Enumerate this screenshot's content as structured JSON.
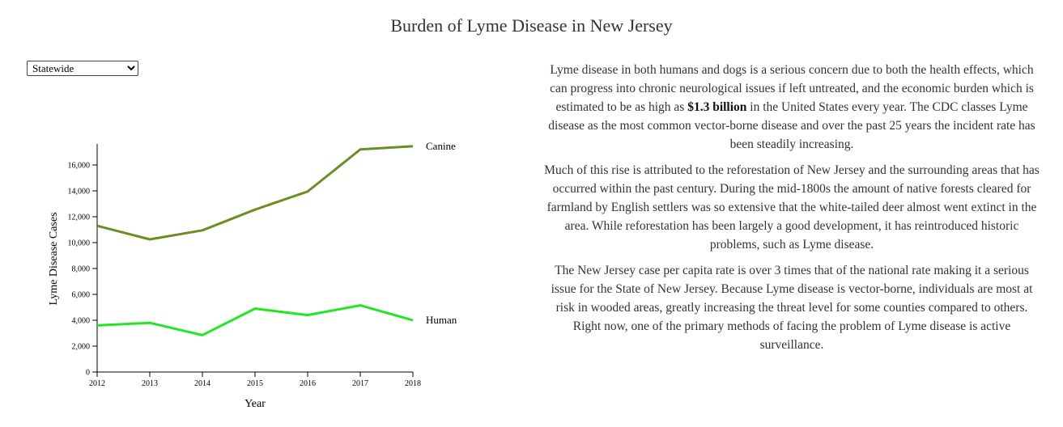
{
  "header": {
    "title": "Burden of Lyme Disease in New Jersey"
  },
  "region_select": {
    "selected": "Statewide",
    "options": [
      "Statewide"
    ]
  },
  "chart_data": {
    "type": "line",
    "title": "",
    "xlabel": "Year",
    "ylabel": "Lyme Disease Cases",
    "x": [
      2012,
      2013,
      2014,
      2015,
      2016,
      2017,
      2018
    ],
    "xlim": [
      2012,
      2018
    ],
    "ylim": [
      0,
      17500
    ],
    "y_ticks": [
      0,
      2000,
      4000,
      6000,
      8000,
      10000,
      12000,
      14000,
      16000
    ],
    "y_tick_labels": [
      "0",
      "2,000",
      "4,000",
      "6,000",
      "8,000",
      "10,000",
      "12,000",
      "14,000",
      "16,000"
    ],
    "grid": false,
    "legend": "inline labels at line ends",
    "series": [
      {
        "name": "Canine",
        "color": "#6b8e23",
        "values": [
          11300,
          10250,
          10950,
          12550,
          13950,
          17200,
          17450
        ]
      },
      {
        "name": "Human",
        "color": "#22e622",
        "values": [
          3600,
          3800,
          2850,
          4900,
          4400,
          5150,
          4000
        ]
      }
    ]
  },
  "article": {
    "p1_before": "Lyme disease in both humans and dogs is a serious concern due to both the health effects, which can progress into chronic neurological issues if left untreated, and the economic burden which is estimated to be as high as ",
    "p1_bold": "$1.3 billion",
    "p1_after": " in the United States every year. The CDC classes Lyme disease as the most common vector-borne disease and over the past 25 years the incident rate has been steadily increasing.",
    "p2": "Much of this rise is attributed to the reforestation of New Jersey and the surrounding areas that has occurred within the past century. During the mid-1800s the amount of native forests cleared for farmland by English settlers was so extensive that the white-tailed deer almost went extinct in the area. While reforestation has been largely a good development, it has reintroduced historic problems, such as Lyme disease.",
    "p3": "The New Jersey case per capita rate is over 3 times that of the national rate making it a serious issue for the State of New Jersey. Because Lyme disease is vector-borne, individuals are most at risk in wooded areas, greatly increasing the threat level for some counties compared to others. Right now, one of the primary methods of facing the problem of Lyme disease is active surveillance."
  }
}
